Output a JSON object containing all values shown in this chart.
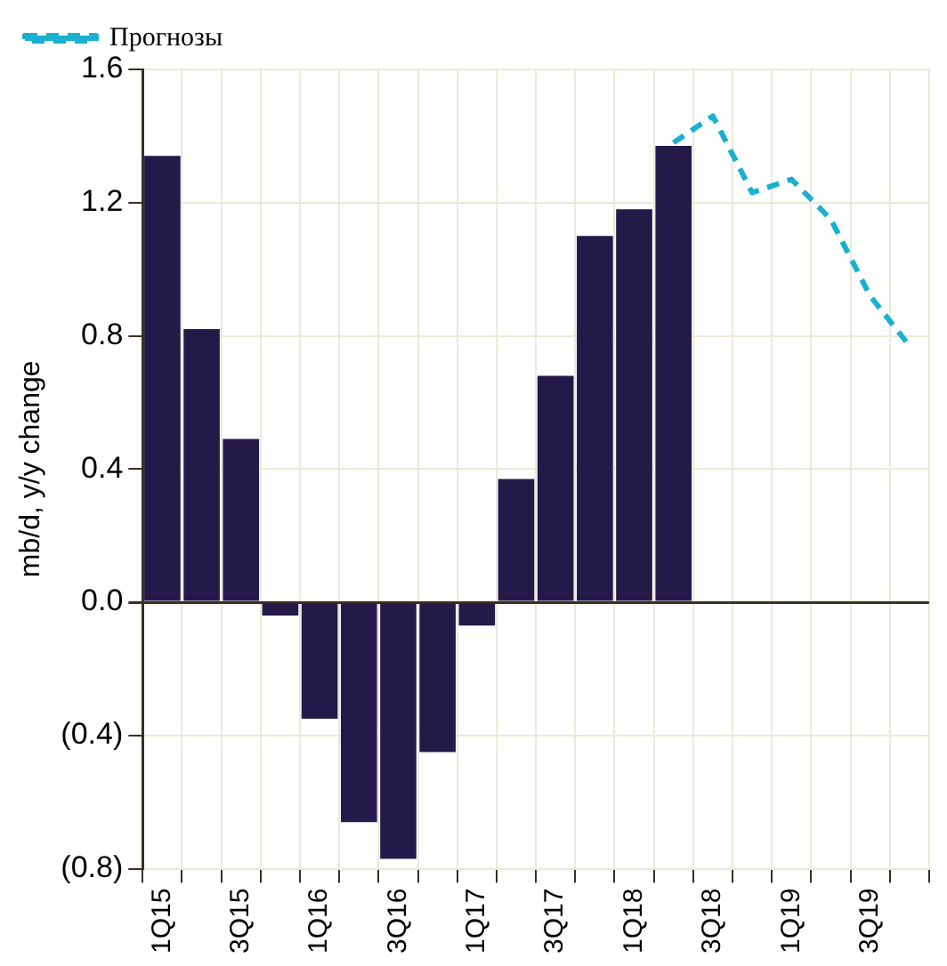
{
  "chart_data": {
    "type": "bar",
    "ylabel": "mb/d, y/y change",
    "categories": [
      "1Q15",
      null,
      "3Q15",
      null,
      "1Q16",
      null,
      "3Q16",
      null,
      "1Q17",
      null,
      "3Q17",
      null,
      "1Q18",
      null,
      "3Q18",
      null,
      "1Q19",
      null,
      "3Q19",
      null
    ],
    "series": [
      {
        "color": "#241a4a",
        "values": [
          1.34,
          0.82,
          0.49,
          -0.04,
          -0.35,
          -0.66,
          -0.77,
          -0.45,
          -0.07,
          0.37,
          0.68,
          1.1,
          1.18,
          1.37,
          null,
          null,
          null,
          null,
          null,
          null
        ]
      },
      {
        "type": "line",
        "name": "Прогнозы",
        "color": "#1ab0cf",
        "line_style": "dashed",
        "marker": "none",
        "values": [
          null,
          null,
          null,
          null,
          null,
          null,
          null,
          null,
          null,
          null,
          null,
          null,
          null,
          1.38,
          1.46,
          1.23,
          1.27,
          1.15,
          0.92,
          0.77
        ]
      }
    ],
    "ylim": [
      -0.8,
      1.6
    ],
    "yticks": [
      {
        "value": -0.8,
        "label": "(0.8)"
      },
      {
        "value": -0.4,
        "label": "(0.4)"
      },
      {
        "value": 0,
        "label": "0.0"
      },
      0.4,
      0.8,
      1.2,
      1.6
    ],
    "grid": true,
    "legend": "top left"
  }
}
